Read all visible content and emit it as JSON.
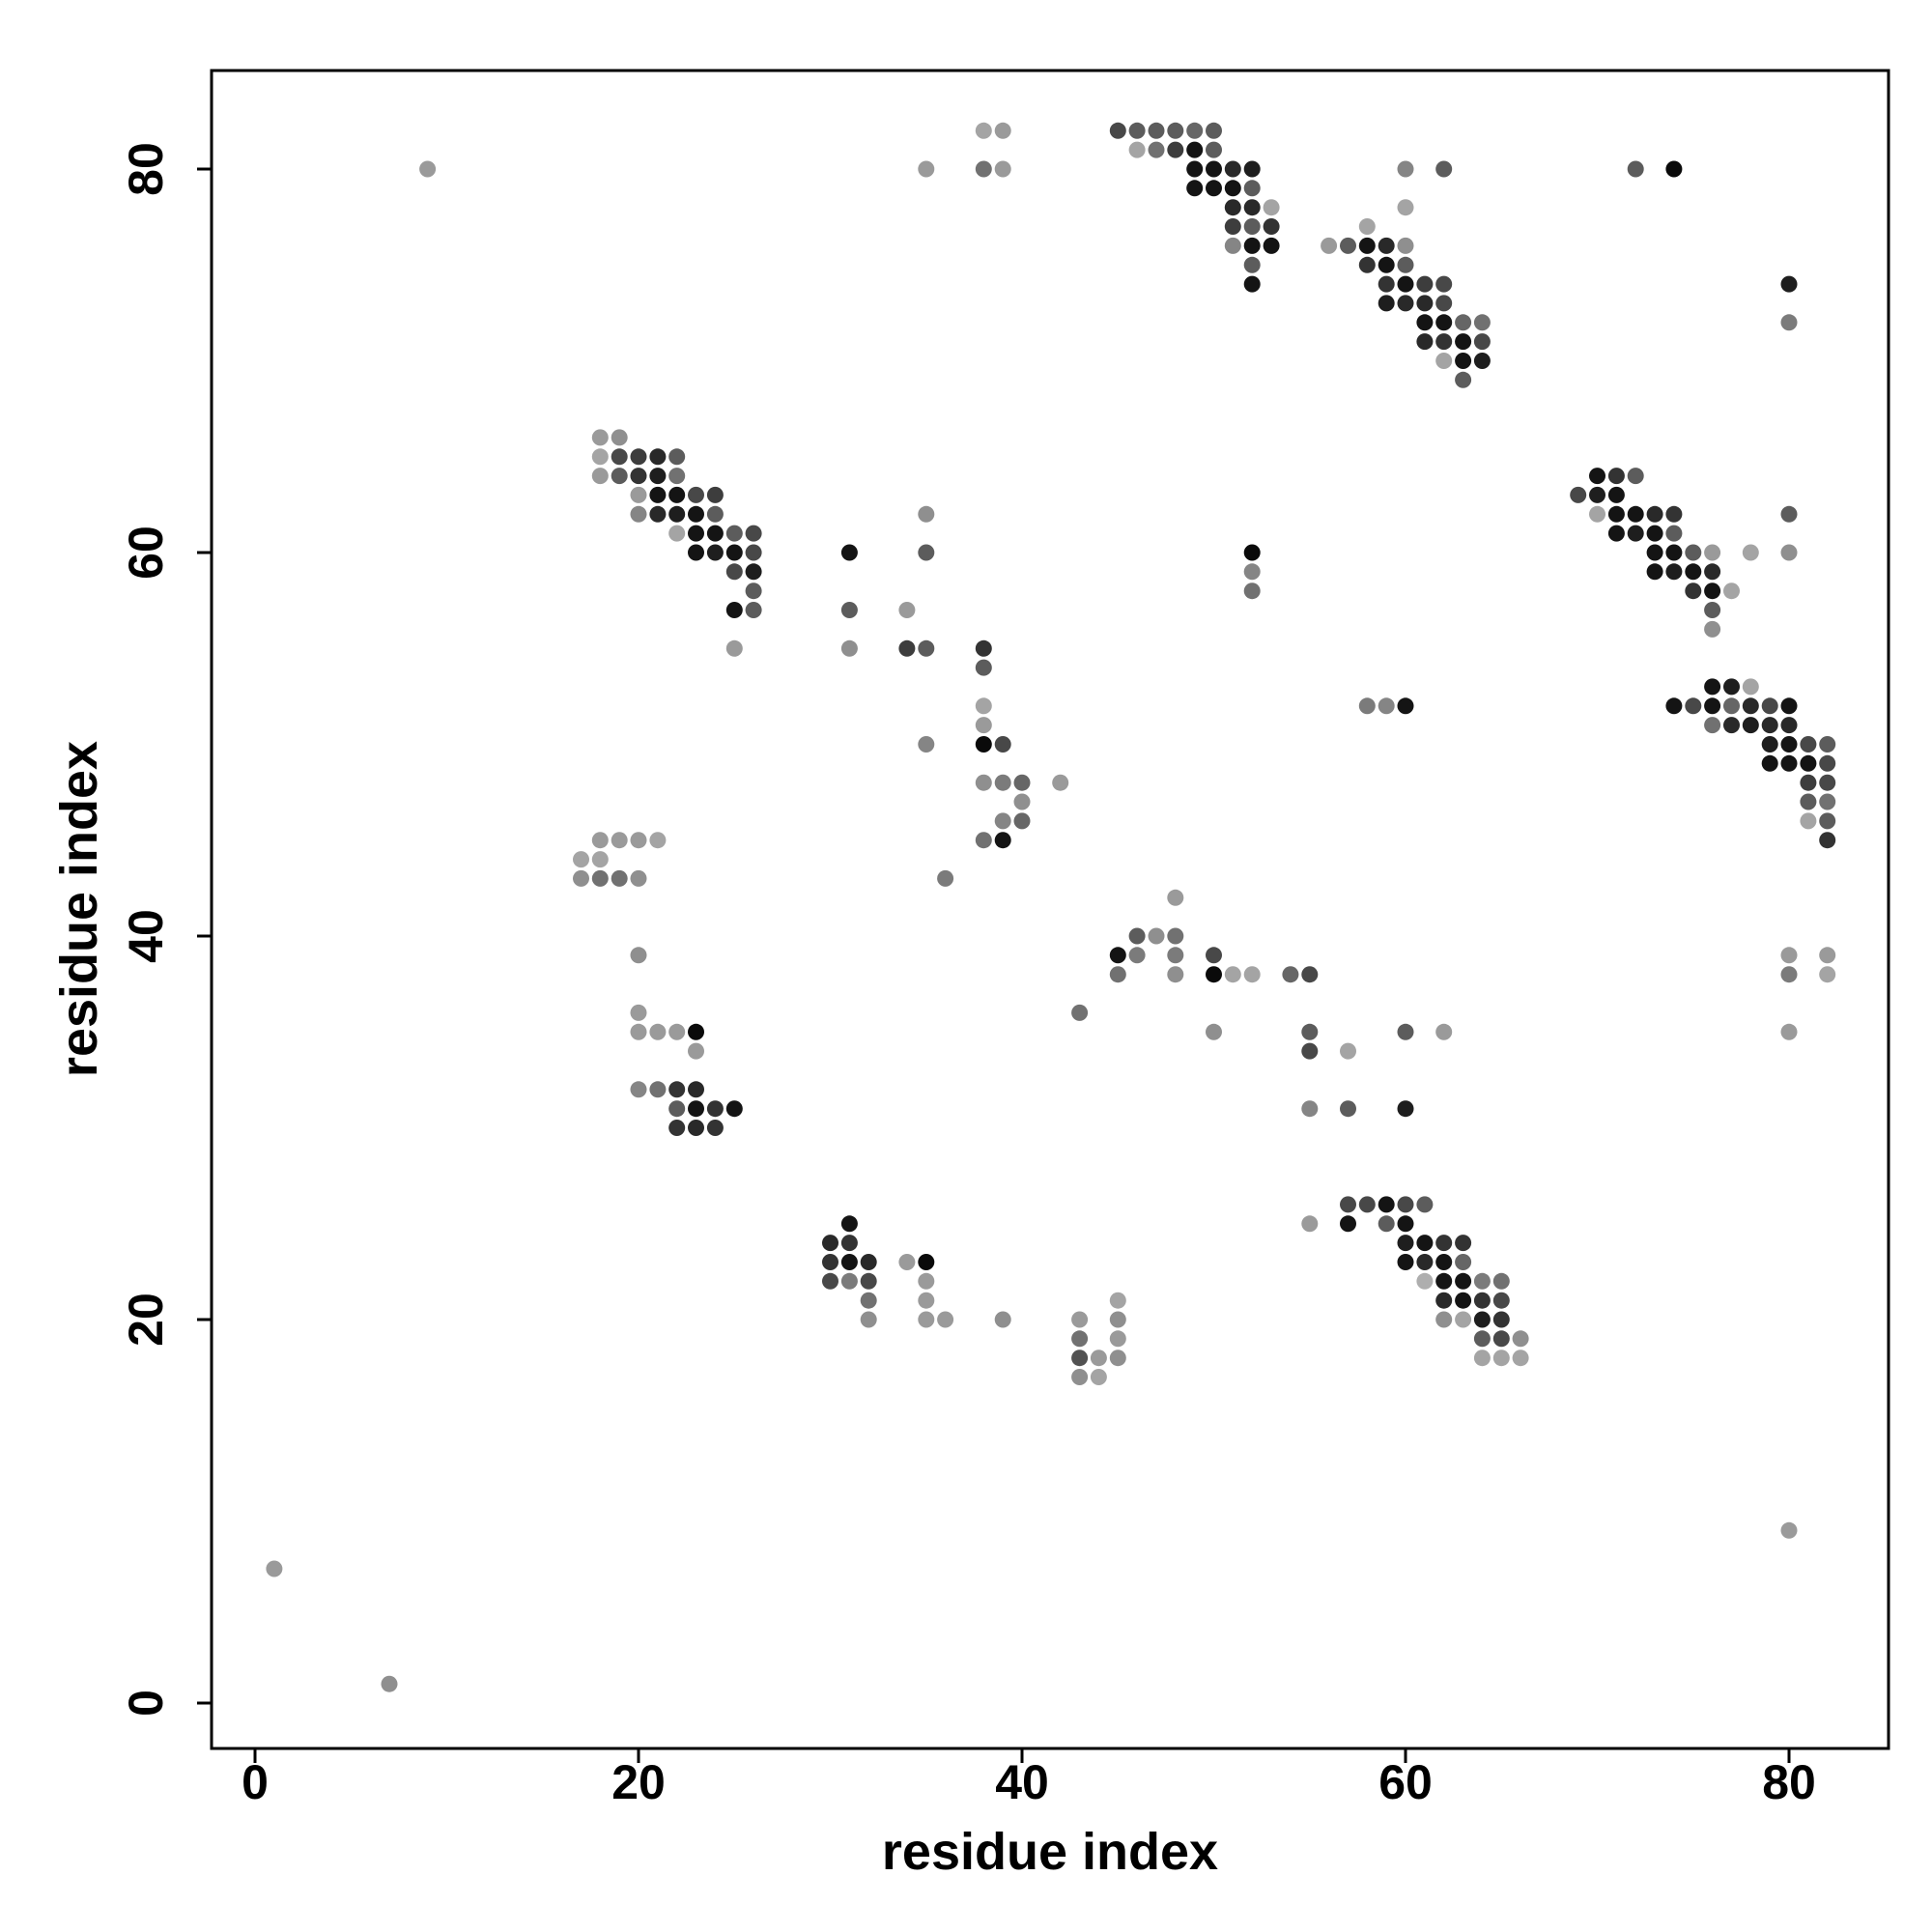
{
  "chart_data": {
    "type": "scatter",
    "title": "",
    "xlabel": "residue index",
    "ylabel": "residue index",
    "xlim": [
      -2.5,
      85
    ],
    "ylim": [
      -2.5,
      85
    ],
    "xticks": [
      0,
      20,
      40,
      60,
      80
    ],
    "yticks": [
      0,
      20,
      40,
      60,
      80
    ],
    "grid": false,
    "legend": "none",
    "color_encoding": "grayscale intensity (darker = stronger)",
    "points": [
      [
        1,
        7,
        0.3
      ],
      [
        7,
        1,
        0.35
      ],
      [
        9,
        80,
        0.3
      ],
      [
        17,
        44,
        0.25
      ],
      [
        17,
        43,
        0.35
      ],
      [
        18,
        45,
        0.3
      ],
      [
        18,
        44,
        0.25
      ],
      [
        18,
        43,
        0.5
      ],
      [
        19,
        45,
        0.3
      ],
      [
        19,
        43,
        0.5
      ],
      [
        20,
        45,
        0.3
      ],
      [
        20,
        43,
        0.35
      ],
      [
        21,
        45,
        0.25
      ],
      [
        20,
        39,
        0.35
      ],
      [
        20,
        36,
        0.3
      ],
      [
        20,
        35,
        0.3
      ],
      [
        21,
        35,
        0.3
      ],
      [
        22,
        35,
        0.3
      ],
      [
        23,
        35,
        1.0
      ],
      [
        23,
        34,
        0.3
      ],
      [
        20,
        32,
        0.4
      ],
      [
        21,
        32,
        0.5
      ],
      [
        22,
        32,
        0.8
      ],
      [
        22,
        31,
        0.6
      ],
      [
        23,
        32,
        0.85
      ],
      [
        23,
        31,
        0.95
      ],
      [
        24,
        31,
        0.8
      ],
      [
        25,
        31,
        0.95
      ],
      [
        22,
        30,
        0.8
      ],
      [
        23,
        30,
        0.85
      ],
      [
        24,
        30,
        0.8
      ],
      [
        18,
        66,
        0.3
      ],
      [
        18,
        65,
        0.25
      ],
      [
        18,
        64,
        0.3
      ],
      [
        19,
        66,
        0.35
      ],
      [
        19,
        65,
        0.7
      ],
      [
        19,
        64,
        0.6
      ],
      [
        20,
        65,
        0.75
      ],
      [
        20,
        64,
        0.8
      ],
      [
        20,
        63,
        0.3
      ],
      [
        20,
        62,
        0.4
      ],
      [
        21,
        65,
        0.85
      ],
      [
        21,
        64,
        0.9
      ],
      [
        21,
        63,
        0.95
      ],
      [
        21,
        62,
        0.85
      ],
      [
        22,
        65,
        0.6
      ],
      [
        22,
        64,
        0.5
      ],
      [
        22,
        63,
        0.95
      ],
      [
        22,
        62,
        0.9
      ],
      [
        22,
        61,
        0.25
      ],
      [
        23,
        63,
        0.7
      ],
      [
        23,
        62,
        0.95
      ],
      [
        23,
        61,
        0.95
      ],
      [
        23,
        60,
        0.95
      ],
      [
        24,
        63,
        0.75
      ],
      [
        24,
        62,
        0.6
      ],
      [
        24,
        61,
        0.95
      ],
      [
        24,
        60,
        0.9
      ],
      [
        25,
        61,
        0.6
      ],
      [
        25,
        60,
        0.95
      ],
      [
        25,
        59,
        0.7
      ],
      [
        25,
        57,
        0.95
      ],
      [
        25,
        55,
        0.3
      ],
      [
        26,
        61,
        0.7
      ],
      [
        26,
        60,
        0.7
      ],
      [
        26,
        59,
        0.9
      ],
      [
        26,
        58,
        0.6
      ],
      [
        26,
        57,
        0.6
      ],
      [
        30,
        24,
        0.85
      ],
      [
        30,
        23,
        0.8
      ],
      [
        30,
        22,
        0.7
      ],
      [
        31,
        25,
        0.95
      ],
      [
        31,
        24,
        0.8
      ],
      [
        31,
        23,
        0.95
      ],
      [
        31,
        22,
        0.45
      ],
      [
        32,
        23,
        0.85
      ],
      [
        32,
        22,
        0.7
      ],
      [
        32,
        21,
        0.5
      ],
      [
        32,
        20,
        0.35
      ],
      [
        34,
        23,
        0.3
      ],
      [
        35,
        23,
        1.0
      ],
      [
        35,
        22,
        0.3
      ],
      [
        35,
        21,
        0.3
      ],
      [
        35,
        20,
        0.3
      ],
      [
        36,
        20,
        0.3
      ],
      [
        39,
        20,
        0.35
      ],
      [
        43,
        20,
        0.3
      ],
      [
        43,
        19,
        0.5
      ],
      [
        43,
        18,
        0.65
      ],
      [
        43,
        17,
        0.35
      ],
      [
        44,
        18,
        0.3
      ],
      [
        44,
        17,
        0.25
      ],
      [
        45,
        21,
        0.25
      ],
      [
        45,
        20,
        0.35
      ],
      [
        45,
        19,
        0.3
      ],
      [
        45,
        18,
        0.35
      ],
      [
        31,
        60,
        0.95
      ],
      [
        31,
        57,
        0.6
      ],
      [
        31,
        55,
        0.35
      ],
      [
        34,
        57,
        0.3
      ],
      [
        34,
        55,
        0.75
      ],
      [
        35,
        62,
        0.35
      ],
      [
        35,
        60,
        0.6
      ],
      [
        35,
        55,
        0.6
      ],
      [
        35,
        50,
        0.4
      ],
      [
        36,
        43,
        0.45
      ],
      [
        38,
        55,
        0.8
      ],
      [
        38,
        54,
        0.6
      ],
      [
        38,
        52,
        0.25
      ],
      [
        38,
        51,
        0.3
      ],
      [
        38,
        50,
        1.0
      ],
      [
        38,
        48,
        0.35
      ],
      [
        38,
        45,
        0.5
      ],
      [
        39,
        50,
        0.7
      ],
      [
        39,
        48,
        0.45
      ],
      [
        39,
        46,
        0.4
      ],
      [
        39,
        45,
        0.95
      ],
      [
        40,
        48,
        0.55
      ],
      [
        40,
        47,
        0.35
      ],
      [
        40,
        46,
        0.55
      ],
      [
        42,
        48,
        0.3
      ],
      [
        35,
        80,
        0.3
      ],
      [
        38,
        82,
        0.25
      ],
      [
        38,
        80,
        0.5
      ],
      [
        39,
        82,
        0.3
      ],
      [
        39,
        80,
        0.3
      ],
      [
        45,
        82,
        0.7
      ],
      [
        46,
        82,
        0.6
      ],
      [
        46,
        81,
        0.25
      ],
      [
        47,
        82,
        0.6
      ],
      [
        47,
        81,
        0.5
      ],
      [
        48,
        82,
        0.6
      ],
      [
        48,
        81,
        0.75
      ],
      [
        49,
        82,
        0.55
      ],
      [
        49,
        81,
        0.95
      ],
      [
        49,
        80,
        0.95
      ],
      [
        49,
        79,
        0.95
      ],
      [
        50,
        82,
        0.6
      ],
      [
        50,
        81,
        0.6
      ],
      [
        50,
        80,
        0.95
      ],
      [
        50,
        79,
        0.95
      ],
      [
        51,
        80,
        0.85
      ],
      [
        51,
        79,
        0.95
      ],
      [
        51,
        78,
        0.85
      ],
      [
        51,
        77,
        0.75
      ],
      [
        51,
        76,
        0.4
      ],
      [
        52,
        80,
        0.9
      ],
      [
        52,
        79,
        0.6
      ],
      [
        52,
        78,
        0.85
      ],
      [
        52,
        77,
        0.6
      ],
      [
        52,
        76,
        0.95
      ],
      [
        52,
        75,
        0.6
      ],
      [
        52,
        74,
        0.95
      ],
      [
        53,
        78,
        0.25
      ],
      [
        53,
        77,
        0.8
      ],
      [
        53,
        76,
        0.95
      ],
      [
        56,
        76,
        0.3
      ],
      [
        57,
        76,
        0.6
      ],
      [
        58,
        77,
        0.25
      ],
      [
        58,
        76,
        0.95
      ],
      [
        58,
        75,
        0.8
      ],
      [
        59,
        76,
        0.85
      ],
      [
        59,
        75,
        0.95
      ],
      [
        59,
        74,
        0.8
      ],
      [
        59,
        73,
        0.9
      ],
      [
        60,
        80,
        0.4
      ],
      [
        60,
        78,
        0.25
      ],
      [
        60,
        76,
        0.35
      ],
      [
        60,
        75,
        0.6
      ],
      [
        60,
        74,
        0.95
      ],
      [
        60,
        73,
        0.85
      ],
      [
        61,
        74,
        0.75
      ],
      [
        61,
        73,
        0.85
      ],
      [
        61,
        72,
        0.95
      ],
      [
        61,
        71,
        0.85
      ],
      [
        62,
        80,
        0.6
      ],
      [
        62,
        74,
        0.7
      ],
      [
        62,
        73,
        0.7
      ],
      [
        62,
        72,
        0.95
      ],
      [
        62,
        71,
        0.8
      ],
      [
        62,
        70,
        0.25
      ],
      [
        63,
        72,
        0.55
      ],
      [
        63,
        71,
        0.95
      ],
      [
        63,
        70,
        0.95
      ],
      [
        63,
        69,
        0.6
      ],
      [
        64,
        72,
        0.5
      ],
      [
        64,
        71,
        0.7
      ],
      [
        64,
        70,
        0.9
      ],
      [
        52,
        60,
        1.0
      ],
      [
        52,
        59,
        0.4
      ],
      [
        52,
        58,
        0.5
      ],
      [
        58,
        52,
        0.45
      ],
      [
        59,
        52,
        0.4
      ],
      [
        60,
        52,
        0.95
      ],
      [
        45,
        39,
        0.95
      ],
      [
        45,
        38,
        0.5
      ],
      [
        46,
        40,
        0.6
      ],
      [
        46,
        39,
        0.45
      ],
      [
        47,
        40,
        0.35
      ],
      [
        48,
        42,
        0.3
      ],
      [
        48,
        40,
        0.5
      ],
      [
        48,
        39,
        0.45
      ],
      [
        48,
        38,
        0.35
      ],
      [
        50,
        39,
        0.7
      ],
      [
        50,
        38,
        1.0
      ],
      [
        50,
        35,
        0.35
      ],
      [
        51,
        38,
        0.25
      ],
      [
        52,
        38,
        0.25
      ],
      [
        54,
        38,
        0.55
      ],
      [
        55,
        38,
        0.7
      ],
      [
        55,
        35,
        0.6
      ],
      [
        55,
        34,
        0.7
      ],
      [
        55,
        31,
        0.4
      ],
      [
        57,
        34,
        0.25
      ],
      [
        57,
        31,
        0.6
      ],
      [
        60,
        35,
        0.6
      ],
      [
        60,
        31,
        0.9
      ],
      [
        62,
        35,
        0.3
      ],
      [
        43,
        36,
        0.5
      ],
      [
        55,
        25,
        0.3
      ],
      [
        57,
        26,
        0.7
      ],
      [
        57,
        25,
        0.95
      ],
      [
        58,
        26,
        0.7
      ],
      [
        59,
        26,
        0.95
      ],
      [
        59,
        25,
        0.6
      ],
      [
        60,
        26,
        0.7
      ],
      [
        60,
        25,
        0.95
      ],
      [
        60,
        24,
        0.9
      ],
      [
        60,
        23,
        0.95
      ],
      [
        61,
        26,
        0.6
      ],
      [
        61,
        24,
        0.95
      ],
      [
        61,
        23,
        0.85
      ],
      [
        61,
        22,
        0.2
      ],
      [
        62,
        24,
        0.8
      ],
      [
        62,
        23,
        0.95
      ],
      [
        62,
        22,
        0.95
      ],
      [
        62,
        21,
        0.85
      ],
      [
        62,
        20,
        0.35
      ],
      [
        63,
        24,
        0.8
      ],
      [
        63,
        23,
        0.55
      ],
      [
        63,
        22,
        0.95
      ],
      [
        63,
        21,
        0.95
      ],
      [
        63,
        20,
        0.25
      ],
      [
        64,
        22,
        0.45
      ],
      [
        64,
        21,
        0.8
      ],
      [
        64,
        20,
        0.9
      ],
      [
        64,
        19,
        0.6
      ],
      [
        64,
        18,
        0.25
      ],
      [
        65,
        22,
        0.5
      ],
      [
        65,
        21,
        0.7
      ],
      [
        65,
        20,
        0.8
      ],
      [
        65,
        19,
        0.7
      ],
      [
        65,
        18,
        0.25
      ],
      [
        66,
        19,
        0.35
      ],
      [
        66,
        18,
        0.25
      ],
      [
        69,
        63,
        0.7
      ],
      [
        70,
        64,
        0.95
      ],
      [
        70,
        63,
        0.9
      ],
      [
        70,
        62,
        0.25
      ],
      [
        71,
        64,
        0.8
      ],
      [
        71,
        63,
        0.95
      ],
      [
        71,
        62,
        0.95
      ],
      [
        71,
        61,
        0.95
      ],
      [
        72,
        80,
        0.6
      ],
      [
        72,
        64,
        0.6
      ],
      [
        72,
        62,
        0.95
      ],
      [
        72,
        61,
        0.9
      ],
      [
        73,
        62,
        0.85
      ],
      [
        73,
        61,
        0.95
      ],
      [
        73,
        60,
        0.95
      ],
      [
        73,
        59,
        0.95
      ],
      [
        74,
        80,
        1.0
      ],
      [
        74,
        62,
        0.8
      ],
      [
        74,
        61,
        0.6
      ],
      [
        74,
        60,
        0.95
      ],
      [
        74,
        59,
        0.9
      ],
      [
        75,
        60,
        0.6
      ],
      [
        75,
        59,
        0.95
      ],
      [
        75,
        58,
        0.8
      ],
      [
        76,
        60,
        0.3
      ],
      [
        76,
        59,
        0.85
      ],
      [
        76,
        58,
        0.95
      ],
      [
        76,
        57,
        0.6
      ],
      [
        76,
        56,
        0.35
      ],
      [
        77,
        58,
        0.25
      ],
      [
        78,
        60,
        0.25
      ],
      [
        80,
        62,
        0.6
      ],
      [
        80,
        60,
        0.35
      ],
      [
        80,
        74,
        0.9
      ],
      [
        80,
        72,
        0.45
      ],
      [
        74,
        52,
        0.95
      ],
      [
        75,
        52,
        0.7
      ],
      [
        76,
        53,
        0.95
      ],
      [
        76,
        52,
        0.95
      ],
      [
        76,
        51,
        0.5
      ],
      [
        77,
        53,
        0.9
      ],
      [
        77,
        52,
        0.55
      ],
      [
        77,
        51,
        0.85
      ],
      [
        78,
        53,
        0.25
      ],
      [
        78,
        52,
        0.85
      ],
      [
        78,
        51,
        0.9
      ],
      [
        79,
        52,
        0.7
      ],
      [
        79,
        51,
        0.85
      ],
      [
        79,
        50,
        0.9
      ],
      [
        79,
        49,
        0.95
      ],
      [
        80,
        52,
        0.95
      ],
      [
        80,
        51,
        0.85
      ],
      [
        80,
        50,
        0.95
      ],
      [
        80,
        49,
        0.95
      ],
      [
        81,
        50,
        0.7
      ],
      [
        81,
        49,
        0.95
      ],
      [
        81,
        48,
        0.75
      ],
      [
        81,
        47,
        0.6
      ],
      [
        81,
        46,
        0.25
      ],
      [
        82,
        50,
        0.6
      ],
      [
        82,
        49,
        0.7
      ],
      [
        82,
        48,
        0.7
      ],
      [
        82,
        47,
        0.5
      ],
      [
        82,
        46,
        0.6
      ],
      [
        82,
        45,
        0.8
      ],
      [
        80,
        39,
        0.3
      ],
      [
        80,
        38,
        0.45
      ],
      [
        80,
        35,
        0.3
      ],
      [
        82,
        39,
        0.3
      ],
      [
        82,
        38,
        0.25
      ],
      [
        80,
        9,
        0.3
      ]
    ]
  }
}
